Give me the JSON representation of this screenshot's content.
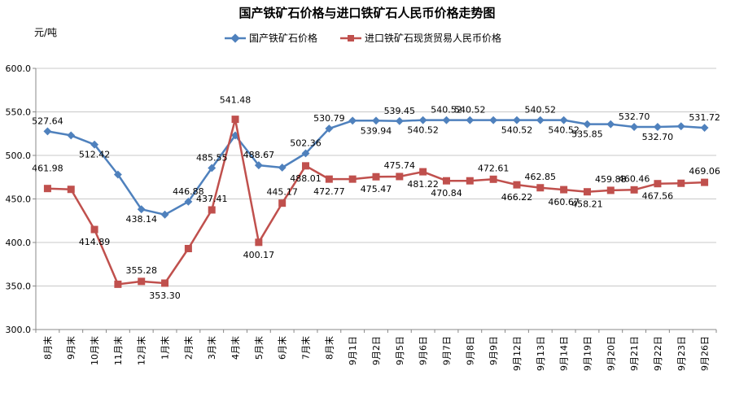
{
  "chart_data": {
    "type": "line",
    "title": "国产铁矿石价格与进口铁矿石人民币价格走势图",
    "ylabel": "元/吨",
    "ylim": [
      300,
      600
    ],
    "yticks": [
      "300.0",
      "350.0",
      "400.0",
      "450.0",
      "500.0",
      "550.0",
      "600.0"
    ],
    "grid": true,
    "legend_position": "top-center",
    "categories": [
      "8月末",
      "9月末",
      "10月末",
      "11月末",
      "12月末",
      "1月末",
      "2月末",
      "3月末",
      "4月末",
      "5月末",
      "6月末",
      "7月末",
      "8月末",
      "9月1日",
      "9月2日",
      "9月5日",
      "9月6日",
      "9月7日",
      "9月8日",
      "9月9日",
      "9月12日",
      "9月13日",
      "9月14日",
      "9月19日",
      "9月20日",
      "9月21日",
      "9月22日",
      "9月23日",
      "9月26日"
    ],
    "series": [
      {
        "name": "国产铁矿石价格",
        "color": "#4F81BD",
        "marker": "diamond",
        "values": [
          527.64,
          523.0,
          512.42,
          478.0,
          438.14,
          432.0,
          446.88,
          485.55,
          523.0,
          488.67,
          486.0,
          502.36,
          530.79,
          539.94,
          539.94,
          539.45,
          540.52,
          540.52,
          540.52,
          540.52,
          540.52,
          540.52,
          540.52,
          535.85,
          535.85,
          532.7,
          532.7,
          533.5,
          531.72
        ],
        "labels": [
          "527.64",
          "",
          "512.42",
          "",
          "438.14",
          "",
          "446.88",
          "485.55",
          "",
          "488.67",
          "",
          "502.36",
          "530.79",
          "",
          "539.94",
          "539.45",
          "540.52",
          "540.52",
          "540.52",
          "",
          "540.52",
          "540.52",
          "540.52",
          "535.85",
          "",
          "532.70",
          "532.70",
          "",
          "531.72"
        ]
      },
      {
        "name": "进口铁矿石现货贸易人民币价格",
        "color": "#C0504D",
        "marker": "square",
        "values": [
          461.98,
          461.0,
          414.89,
          352.0,
          355.28,
          353.3,
          393.0,
          437.41,
          541.48,
          400.17,
          445.17,
          488.01,
          472.77,
          472.77,
          475.47,
          475.74,
          481.22,
          470.84,
          470.84,
          472.61,
          466.22,
          462.85,
          460.67,
          458.21,
          459.88,
          460.46,
          467.56,
          468.0,
          469.06
        ],
        "labels": [
          "461.98",
          "",
          "414.89",
          "",
          "355.28",
          "353.30",
          "",
          "437.41",
          "541.48",
          "400.17",
          "445.17",
          "488.01",
          "472.77",
          "",
          "475.47",
          "475.74",
          "481.22",
          "470.84",
          "",
          "472.61",
          "466.22",
          "462.85",
          "460.67",
          "458.21",
          "459.88",
          "460.46",
          "467.56",
          "",
          "469.06"
        ]
      }
    ]
  }
}
